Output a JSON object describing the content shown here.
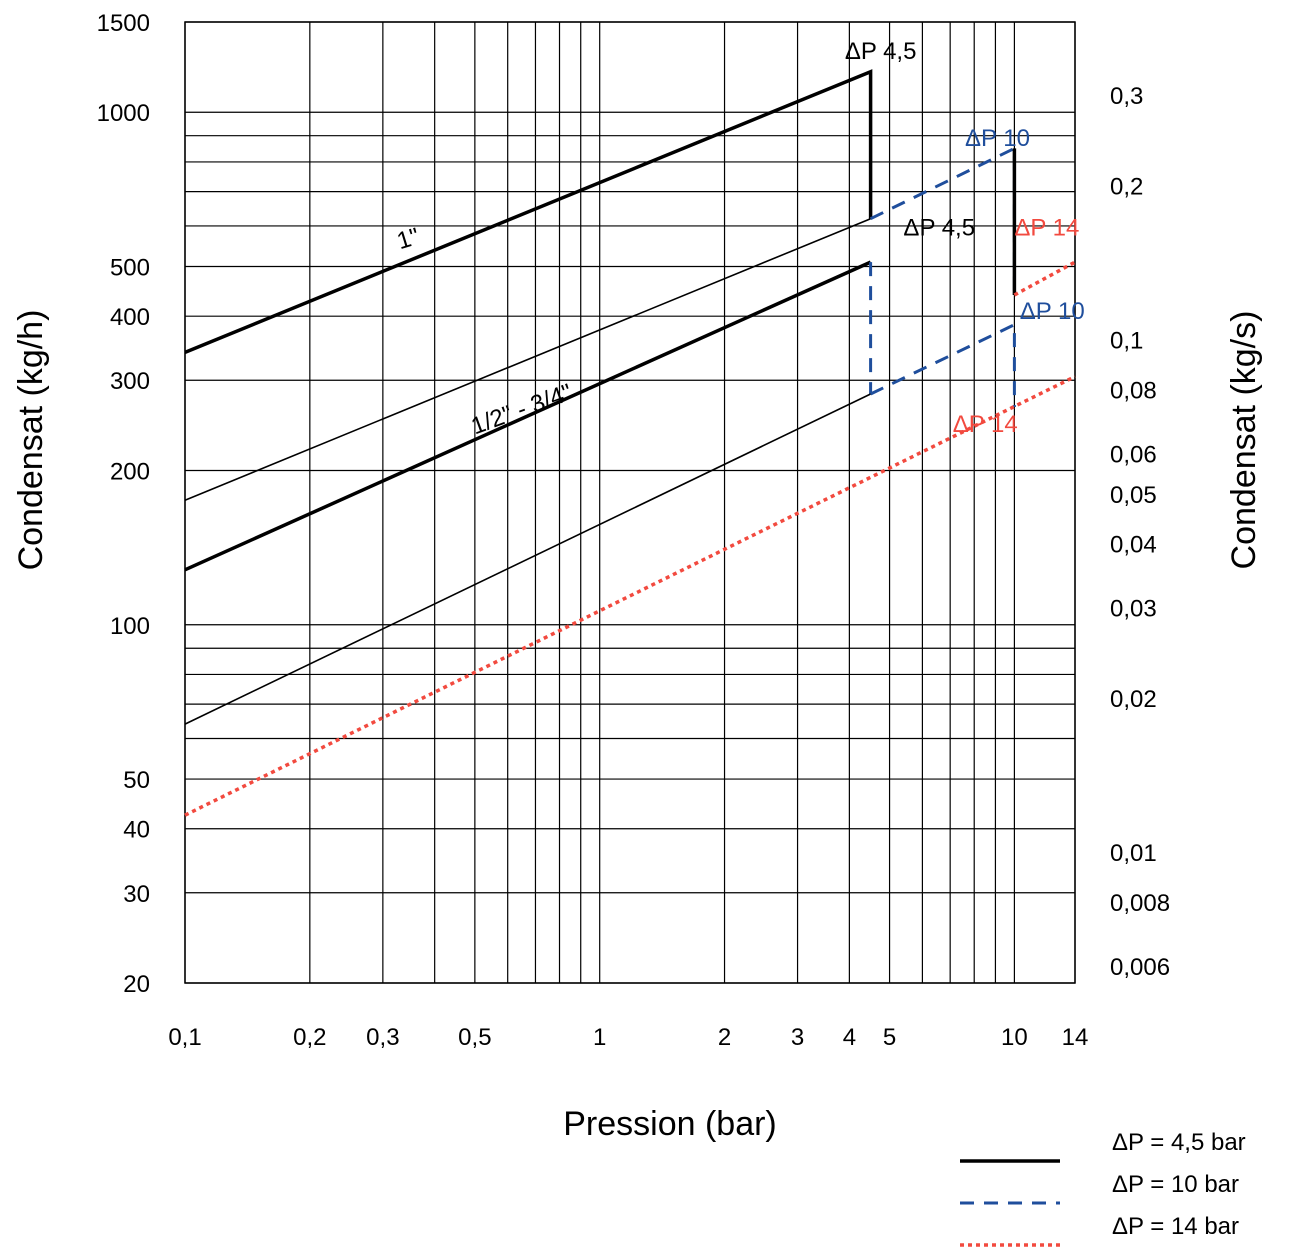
{
  "chart_data": {
    "type": "line",
    "x_scale": "log",
    "y_scale": "log",
    "xlim": [
      0.1,
      14
    ],
    "ylim": [
      20,
      1500
    ],
    "grid": true,
    "xlabel": "Pression (bar)",
    "ylabel": "Condensat (kg/h)",
    "ylabel_right": "Condensat (kg/s)",
    "x_ticks": [
      0.1,
      0.2,
      0.3,
      0.5,
      1,
      2,
      3,
      4,
      5,
      10,
      14
    ],
    "x_tick_labels": [
      "0,1",
      "0,2",
      "0,3",
      "0,5",
      "1",
      "2",
      "3",
      "4",
      "5",
      "10",
      "14"
    ],
    "x_gridlines": [
      0.1,
      0.2,
      0.3,
      0.4,
      0.5,
      0.6,
      0.7,
      0.8,
      0.9,
      1,
      2,
      3,
      4,
      5,
      6,
      7,
      8,
      9,
      10,
      14
    ],
    "y_ticks": [
      20,
      30,
      40,
      50,
      100,
      200,
      300,
      400,
      500,
      1000,
      1500
    ],
    "y_tick_labels": [
      "20",
      "30",
      "40",
      "50",
      "100",
      "200",
      "300",
      "400",
      "500",
      "1000",
      "1500"
    ],
    "y_gridlines": [
      20,
      30,
      40,
      50,
      60,
      70,
      80,
      90,
      100,
      200,
      300,
      400,
      500,
      600,
      700,
      800,
      900,
      1000,
      1500
    ],
    "right_axis_labels": [
      {
        "text": "0,3",
        "y": 1080
      },
      {
        "text": "0,2",
        "y": 720
      },
      {
        "text": "0,1",
        "y": 360
      },
      {
        "text": "0,08",
        "y": 288
      },
      {
        "text": "0,06",
        "y": 216
      },
      {
        "text": "0,05",
        "y": 180
      },
      {
        "text": "0,04",
        "y": 144
      },
      {
        "text": "0,03",
        "y": 108
      },
      {
        "text": "0,02",
        "y": 72
      },
      {
        "text": "0,01",
        "y": 36
      },
      {
        "text": "0,008",
        "y": 28.8
      },
      {
        "text": "0,006",
        "y": 21.6
      }
    ],
    "series": [
      {
        "style": "solid_thick",
        "color": "#000000",
        "x": [
          0.1,
          4.5,
          4.5
        ],
        "y": [
          340,
          1200,
          620
        ]
      },
      {
        "style": "solid_thin",
        "color": "#000000",
        "x": [
          0.1,
          4.5
        ],
        "y": [
          175,
          620
        ]
      },
      {
        "style": "dashed",
        "color": "#1f4e9c",
        "x": [
          4.5,
          10,
          10
        ],
        "y": [
          620,
          850,
          440
        ]
      },
      {
        "style": "solid_thick",
        "color": "#000000",
        "x": [
          10,
          10
        ],
        "y": [
          850,
          440
        ]
      },
      {
        "style": "solid_thick",
        "color": "#000000",
        "x": [
          0.1,
          4.5
        ],
        "y": [
          128,
          510
        ]
      },
      {
        "style": "dashed",
        "color": "#1f4e9c",
        "x": [
          4.5,
          4.5
        ],
        "y": [
          510,
          282
        ]
      },
      {
        "style": "solid_thin",
        "color": "#000000",
        "x": [
          0.1,
          4.5
        ],
        "y": [
          64,
          282
        ]
      },
      {
        "style": "dashed",
        "color": "#1f4e9c",
        "x": [
          4.5,
          10,
          10
        ],
        "y": [
          282,
          385,
          266
        ]
      },
      {
        "style": "dotted",
        "color": "#f24a3f",
        "x": [
          10,
          14
        ],
        "y": [
          440,
          510
        ]
      },
      {
        "style": "dotted",
        "color": "#f24a3f",
        "x": [
          0.1,
          14
        ],
        "y": [
          42.5,
          305
        ]
      }
    ],
    "annotations": [
      {
        "text": "ΔP 4,5",
        "x": 3.9,
        "y": 1270,
        "color": "#000000"
      },
      {
        "text": "ΔP 10",
        "x": 7.6,
        "y": 860,
        "color": "#1f4e9c"
      },
      {
        "text": "ΔP 14",
        "x": 10.0,
        "y": 575,
        "color": "#f24a3f"
      },
      {
        "text": "ΔP 4,5",
        "x": 5.4,
        "y": 575,
        "color": "#000000"
      },
      {
        "text": "ΔP 10",
        "x": 10.3,
        "y": 395,
        "color": "#1f4e9c"
      },
      {
        "text": "ΔP 14",
        "x": 7.1,
        "y": 238,
        "color": "#f24a3f"
      },
      {
        "text": "1\"",
        "x": 0.33,
        "y": 540,
        "color": "#000000",
        "rotate": -17
      },
      {
        "text": "1/2\" - 3/4\"",
        "x": 0.5,
        "y": 235,
        "color": "#000000",
        "rotate": -20
      }
    ],
    "legend": {
      "placement": "bottom-right",
      "entries": [
        {
          "label": "ΔP = 4,5 bar",
          "style": "solid_thick",
          "color": "#000000"
        },
        {
          "label": "ΔP = 10 bar",
          "style": "dashed",
          "color": "#1f4e9c"
        },
        {
          "label": "ΔP = 14 bar",
          "style": "dotted",
          "color": "#f24a3f"
        }
      ]
    }
  }
}
